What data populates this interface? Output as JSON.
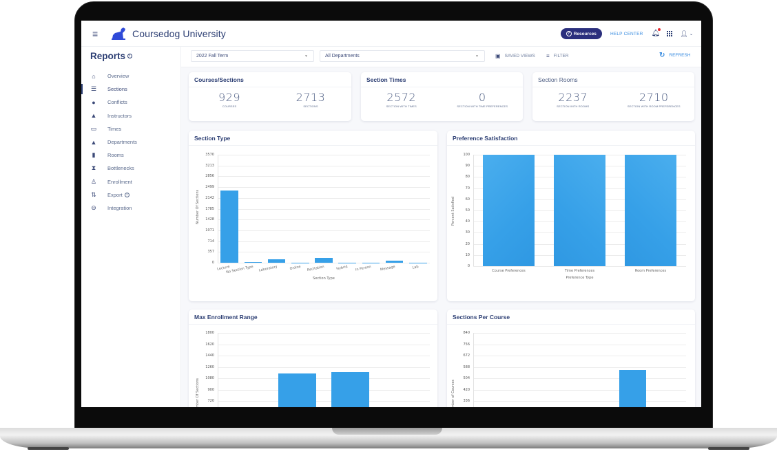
{
  "app": {
    "title": "Coursedog University",
    "brand_color": "#2b2f7d",
    "accent_color": "#3b8de0",
    "bar_color": "#36a0e8"
  },
  "topbar": {
    "resources_label": "Resources",
    "help_center_label": "HELP CENTER",
    "icons": [
      "menu-icon",
      "logo-dog-icon",
      "question-icon",
      "bell-icon",
      "apps-grid-icon",
      "user-icon",
      "chevron-down-icon"
    ],
    "notification_dot_color": "#e6282d"
  },
  "sidebar": {
    "title": "Reports",
    "items": [
      {
        "label": "Overview",
        "icon": "home-icon",
        "glyph": "⌂"
      },
      {
        "label": "Sections",
        "icon": "list-icon",
        "glyph": "☰",
        "active": true
      },
      {
        "label": "Conflicts",
        "icon": "alert-circle-icon",
        "glyph": "●"
      },
      {
        "label": "Instructors",
        "icon": "person-icon",
        "glyph": "👤"
      },
      {
        "label": "Times",
        "icon": "calendar-icon",
        "glyph": "▭"
      },
      {
        "label": "Departments",
        "icon": "person-icon",
        "glyph": "👤"
      },
      {
        "label": "Rooms",
        "icon": "door-icon",
        "glyph": "▮"
      },
      {
        "label": "Bottlenecks",
        "icon": "hourglass-icon",
        "glyph": "⧗"
      },
      {
        "label": "Enrollment",
        "icon": "person-outline-icon",
        "glyph": "♙"
      },
      {
        "label": "Export",
        "icon": "import-export-icon",
        "glyph": "⇅",
        "info": true
      },
      {
        "label": "Integration",
        "icon": "minus-circle-icon",
        "glyph": "⊖"
      }
    ]
  },
  "toolbar": {
    "term_select": "2022 Fall Term",
    "department_select": "All Departments",
    "saved_views_label": "SAVED VIEWS",
    "filter_label": "FILTER",
    "refresh_label": "REFRESH"
  },
  "stats": {
    "courses_sections": {
      "title": "Courses/Sections",
      "items": [
        {
          "value": "929",
          "label": "COURSES"
        },
        {
          "value": "2713",
          "label": "SECTIONS"
        }
      ]
    },
    "section_times": {
      "title": "Section Times",
      "items": [
        {
          "value": "2572",
          "label": "SECTION WITH TIMES"
        },
        {
          "value": "0",
          "label": "SECTION WITH TIME PREFERENCES"
        }
      ]
    },
    "section_rooms": {
      "title": "Section Rooms",
      "items": [
        {
          "value": "2237",
          "label": "SECTION WITH ROOMS"
        },
        {
          "value": "2710",
          "label": "SECTION WITH ROOM PREFERENCES"
        }
      ]
    }
  },
  "chart_data": [
    {
      "type": "bar",
      "title": "Section Type",
      "xlabel": "Section Type",
      "ylabel": "Number Of Sections",
      "ylim": [
        0,
        3570
      ],
      "yticks": [
        "3570",
        "3213",
        "2856",
        "2499",
        "2142",
        "1785",
        "1428",
        "1071",
        "714",
        "357",
        "0"
      ],
      "grid": true,
      "categories": [
        "Lecture",
        "No Section Type",
        "Laboratory",
        "Online",
        "Recitation",
        "Hybrid",
        "In Person",
        "Message",
        "Lab"
      ],
      "values": [
        2390,
        30,
        120,
        5,
        150,
        5,
        10,
        60,
        3
      ]
    },
    {
      "type": "bar",
      "title": "Preference Satisfaction",
      "xlabel": "Preference Type",
      "ylabel": "Percent Satisfied",
      "ylim": [
        0,
        100
      ],
      "yticks": [
        "100",
        "90",
        "80",
        "70",
        "60",
        "50",
        "40",
        "30",
        "20",
        "10",
        "0"
      ],
      "grid": true,
      "categories": [
        "Course Preferences",
        "Time Preferences",
        "Room Preferences"
      ],
      "values": [
        100,
        100,
        100
      ]
    },
    {
      "type": "bar",
      "title": "Max Enrollment Range",
      "xlabel": "",
      "ylabel": "Number Of Sections",
      "ylim": [
        0,
        1800
      ],
      "yticks": [
        "1800",
        "1620",
        "1440",
        "1260",
        "1080",
        "900",
        "720"
      ],
      "grid": true,
      "categories": [
        "",
        "",
        "",
        ""
      ],
      "values": [
        null,
        1160,
        1180,
        null
      ]
    },
    {
      "type": "bar",
      "title": "Sections Per Course",
      "xlabel": "",
      "ylabel": "Number of Courses",
      "ylim": [
        0,
        840
      ],
      "yticks": [
        "840",
        "756",
        "672",
        "588",
        "504",
        "420",
        "336"
      ],
      "grid": true,
      "categories": [
        "",
        ""
      ],
      "values": [
        null,
        565
      ]
    }
  ]
}
